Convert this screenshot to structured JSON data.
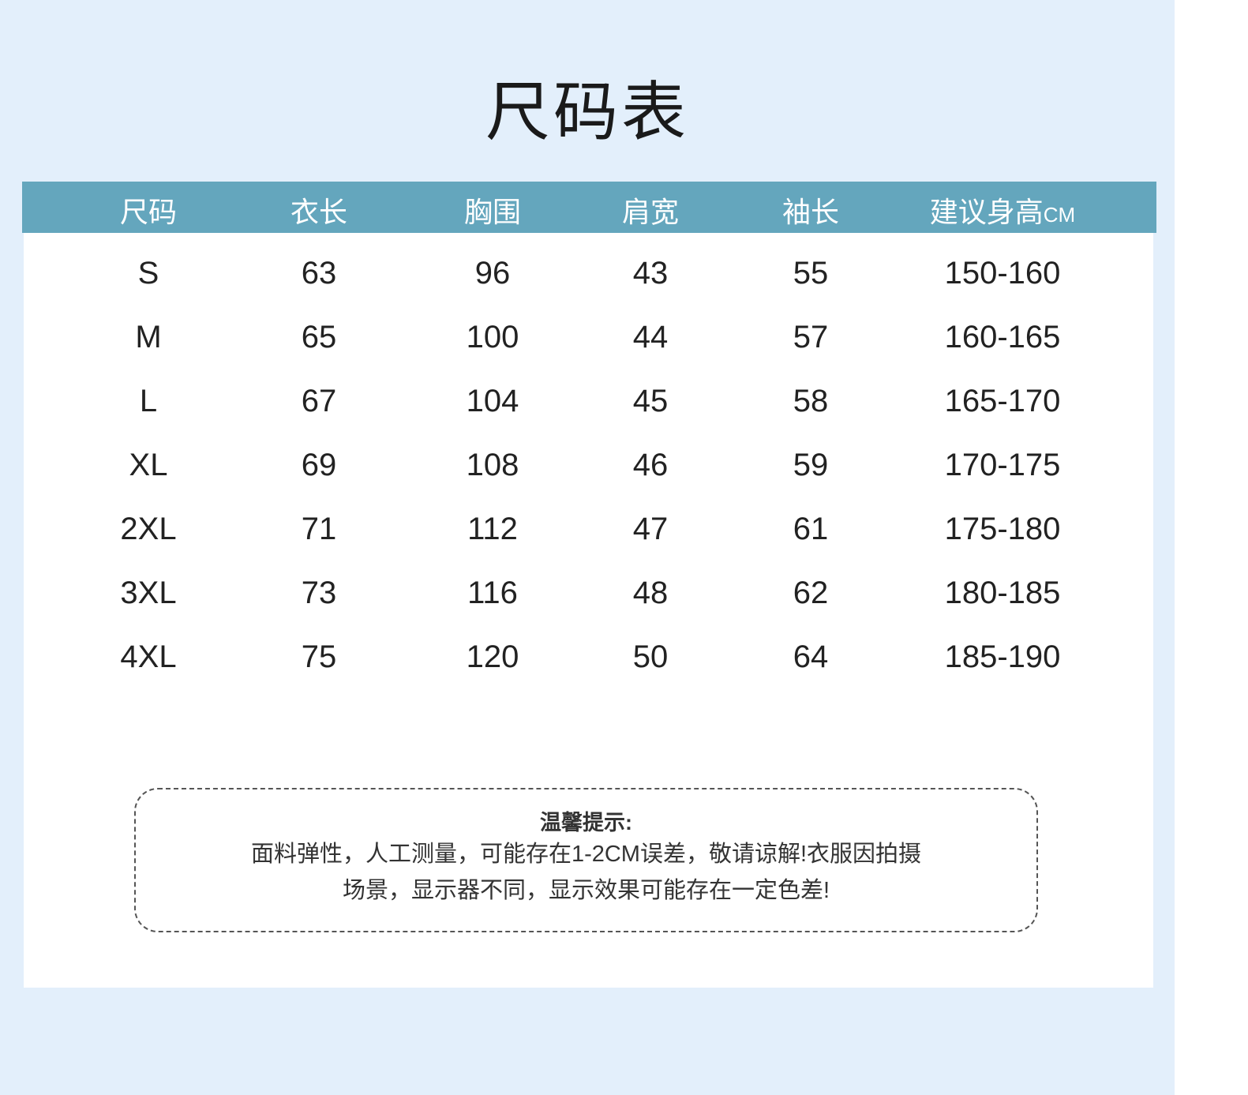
{
  "title": "尺码表",
  "table": {
    "headers": [
      "尺码",
      "衣长",
      "胸围",
      "肩宽",
      "袖长",
      "建议身高"
    ],
    "header_unit_suffix": "CM",
    "rows": [
      [
        "S",
        "63",
        "96",
        "43",
        "55",
        "150-160"
      ],
      [
        "M",
        "65",
        "100",
        "44",
        "57",
        "160-165"
      ],
      [
        "L",
        "67",
        "104",
        "45",
        "58",
        "165-170"
      ],
      [
        "XL",
        "69",
        "108",
        "46",
        "59",
        "170-175"
      ],
      [
        "2XL",
        "71",
        "112",
        "47",
        "61",
        "175-180"
      ],
      [
        "3XL",
        "73",
        "116",
        "48",
        "62",
        "180-185"
      ],
      [
        "4XL",
        "75",
        "120",
        "50",
        "64",
        "185-190"
      ]
    ]
  },
  "note": {
    "title": "温馨提示:",
    "lines": [
      "面料弹性，人工测量，可能存在1-2CM误差，敬请谅解!衣服因拍摄",
      "场景，显示器不同，显示效果可能存在一定色差!"
    ]
  },
  "colors": {
    "background": "#e3effb",
    "header": "#64a6bd"
  }
}
